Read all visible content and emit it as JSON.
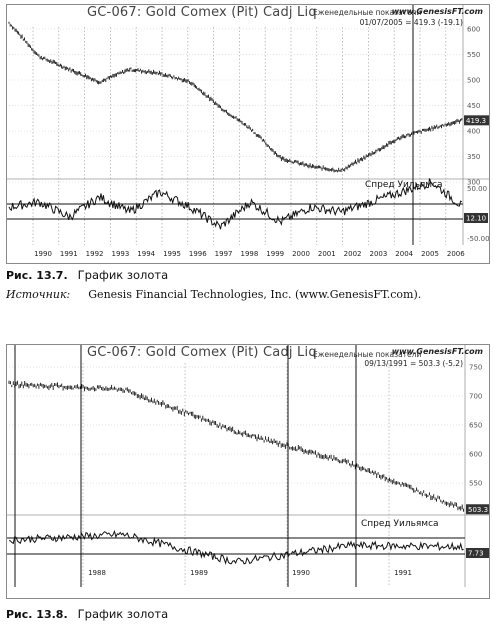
{
  "figure1": {
    "title": "GC-067:  Gold Comex (Pit) Cadj Liq",
    "weekly_label": "Еженедельные показатели",
    "site": "www.GenesisFT.com",
    "readout": "01/07/2005 = 419.3 (-19.1)",
    "indicator_label": "Спред Уильямса",
    "last_price_tag": "419.3",
    "indicator_tag": "12.10",
    "y_ticks": [
      "600",
      "550",
      "500",
      "450",
      "400",
      "350",
      "300"
    ],
    "ind_ticks": [
      "50.00",
      "0.00",
      "-50.00"
    ],
    "x_labels": [
      "1990",
      "1991",
      "1992",
      "1993",
      "1994",
      "1995",
      "1996",
      "1997",
      "1998",
      "1999",
      "2000",
      "2001",
      "2002",
      "2003",
      "2004",
      "2005",
      "2006"
    ],
    "caption_num": "Рис. 13.7.",
    "caption_text": "График золота",
    "source_label": "Источник:",
    "source_text": "Genesis Financial Technologies, Inc. (www.GenesisFT.com).",
    "chart_data": {
      "type": "line",
      "title": "GC-067:  Gold Comex (Pit) Cadj Liq",
      "x": [
        "1990",
        "1991",
        "1992",
        "1993",
        "1994",
        "1995",
        "1996",
        "1997",
        "1998",
        "1999",
        "2000",
        "2001",
        "2002",
        "2003",
        "2004",
        "2005"
      ],
      "series": [
        {
          "values": [
            650,
            570,
            540,
            510,
            540,
            530,
            510,
            450,
            400,
            330,
            310,
            300,
            340,
            380,
            400,
            419.3
          ]
        },
        {
          "name": "Спред Уильямса",
          "values": [
            10,
            20,
            -10,
            30,
            0,
            40,
            10,
            -30,
            20,
            -20,
            10,
            0,
            20,
            40,
            60,
            12.1
          ]
        }
      ],
      "ylim": [
        290,
        640
      ],
      "indicator_ylim": [
        -60,
        60
      ]
    }
  },
  "figure2": {
    "title": "GC-067:  Gold Comex (Pit) Cadj Liq",
    "weekly_label": "Еженедельные показатели",
    "site": "www.GenesisFT.com",
    "readout": "09/13/1991 = 503.3 (-5.2)",
    "indicator_label": "Спред Уильямса",
    "last_price_tag": "503.3",
    "indicator_tag": "7.73",
    "y_ticks": [
      "750",
      "700",
      "650",
      "600",
      "550"
    ],
    "x_labels": [
      "1988",
      "1989",
      "1990",
      "1991"
    ],
    "caption_num": "Рис. 13.8.",
    "caption_text": "График золота",
    "chart_data": {
      "type": "line",
      "title": "GC-067:  Gold Comex (Pit) Cadj Liq",
      "x": [
        "1987",
        "1988",
        "1989",
        "1990",
        "1991"
      ],
      "series": [
        {
          "values": [
            740,
            730,
            650,
            590,
            503.3
          ]
        },
        {
          "name": "Спред Уильямса",
          "values": [
            20,
            30,
            -20,
            10,
            7.73
          ]
        }
      ],
      "ylim": [
        500,
        780
      ],
      "indicator_ylim": [
        -60,
        60
      ]
    }
  }
}
